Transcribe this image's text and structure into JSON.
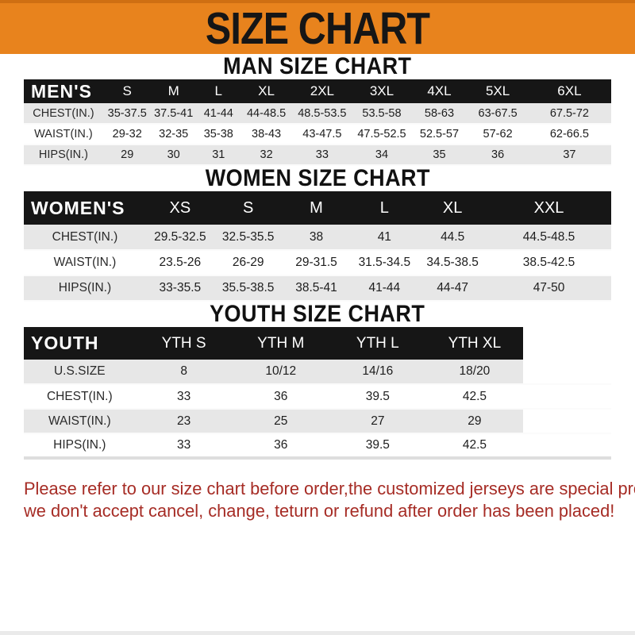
{
  "banner": {
    "title": "SIZE CHART"
  },
  "colors": {
    "banner_bg": "#E8831D",
    "banner_border": "#CF6F12",
    "header_bar_bg": "#161616",
    "stripe_row_bg": "#E7E7E7",
    "footer_text": "#A62C25"
  },
  "sections": [
    {
      "heading": "MAN SIZE CHART",
      "table": {
        "header_label": "MEN'S",
        "columns": [
          "S",
          "M",
          "L",
          "XL",
          "2XL",
          "3XL",
          "4XL",
          "5XL",
          "6XL"
        ],
        "rows": [
          {
            "label": "CHEST(IN.)",
            "values": [
              "35-37.5",
              "37.5-41",
              "41-44",
              "44-48.5",
              "48.5-53.5",
              "53.5-58",
              "58-63",
              "63-67.5",
              "67.5-72"
            ]
          },
          {
            "label": "WAIST(IN.)",
            "values": [
              "29-32",
              "32-35",
              "35-38",
              "38-43",
              "43-47.5",
              "47.5-52.5",
              "52.5-57",
              "57-62",
              "62-66.5"
            ]
          },
          {
            "label": "HIPS(IN.)",
            "values": [
              "29",
              "30",
              "31",
              "32",
              "33",
              "34",
              "35",
              "36",
              "37"
            ]
          }
        ]
      }
    },
    {
      "heading": "WOMEN SIZE CHART",
      "table": {
        "header_label": "WOMEN'S",
        "columns": [
          "XS",
          "S",
          "M",
          "L",
          "XL",
          "XXL"
        ],
        "rows": [
          {
            "label": "CHEST(IN.)",
            "values": [
              "29.5-32.5",
              "32.5-35.5",
              "38",
              "41",
              "44.5",
              "44.5-48.5"
            ]
          },
          {
            "label": "WAIST(IN.)",
            "values": [
              "23.5-26",
              "26-29",
              "29-31.5",
              "31.5-34.5",
              "34.5-38.5",
              "38.5-42.5"
            ]
          },
          {
            "label": "HIPS(IN.)",
            "values": [
              "33-35.5",
              "35.5-38.5",
              "38.5-41",
              "41-44",
              "44-47",
              "47-50"
            ]
          }
        ]
      }
    },
    {
      "heading": "YOUTH SIZE CHART",
      "table": {
        "header_label": "YOUTH",
        "columns": [
          "YTH S",
          "YTH M",
          "YTH L",
          "YTH XL"
        ],
        "rows": [
          {
            "label": "U.S.SIZE",
            "values": [
              "8",
              "10/12",
              "14/16",
              "18/20"
            ]
          },
          {
            "label": "CHEST(IN.)",
            "values": [
              "33",
              "36",
              "39.5",
              "42.5"
            ]
          },
          {
            "label": "WAIST(IN.)",
            "values": [
              "23",
              "25",
              "27",
              "29"
            ]
          },
          {
            "label": "HIPS(IN.)",
            "values": [
              "33",
              "36",
              "39.5",
              "42.5"
            ]
          }
        ]
      }
    }
  ],
  "footer": {
    "lines": [
      "Please refer to our size chart before order,the customized jerseys are special products,",
      "we don't accept cancel, change, teturn or refund after order has been placed!"
    ]
  }
}
